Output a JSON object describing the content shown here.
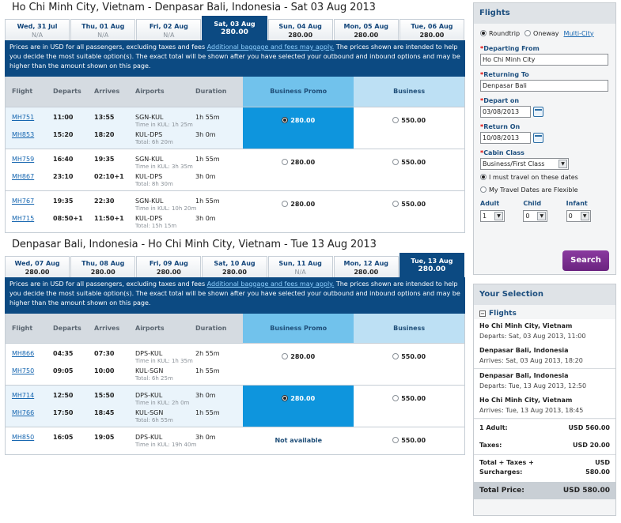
{
  "outbound": {
    "title": "Ho Chi Minh City, Vietnam - Denpasar Bali, Indonesia - Sat 03 Aug 2013",
    "dates": [
      {
        "label": "Wed, 31 Jul",
        "price": "N/A",
        "available": false,
        "selected": false
      },
      {
        "label": "Thu, 01 Aug",
        "price": "N/A",
        "available": false,
        "selected": false
      },
      {
        "label": "Fri, 02 Aug",
        "price": "N/A",
        "available": false,
        "selected": false
      },
      {
        "label": "Sat, 03 Aug",
        "price": "280.00",
        "available": true,
        "selected": true
      },
      {
        "label": "Sun, 04 Aug",
        "price": "280.00",
        "available": true,
        "selected": false
      },
      {
        "label": "Mon, 05 Aug",
        "price": "280.00",
        "available": true,
        "selected": false
      },
      {
        "label": "Tue, 06 Aug",
        "price": "280.00",
        "available": true,
        "selected": false
      }
    ],
    "options": [
      {
        "legs": [
          {
            "flight": "MH751",
            "departs": "11:00",
            "arrives": "13:55",
            "airports": "SGN-KUL",
            "duration": "1h 55m",
            "note": "Time in KUL: 1h 25m"
          },
          {
            "flight": "MH853",
            "departs": "15:20",
            "arrives": "18:20",
            "airports": "KUL-DPS",
            "duration": "3h 0m",
            "note": "Total: 6h 20m"
          }
        ],
        "business_promo": "280.00",
        "business": "550.00",
        "selected": "promo"
      },
      {
        "legs": [
          {
            "flight": "MH759",
            "departs": "16:40",
            "arrives": "19:35",
            "airports": "SGN-KUL",
            "duration": "1h 55m",
            "note": "Time in KUL: 3h 35m"
          },
          {
            "flight": "MH867",
            "departs": "23:10",
            "arrives": "02:10+1",
            "airports": "KUL-DPS",
            "duration": "3h 0m",
            "note": "Total: 8h 30m"
          }
        ],
        "business_promo": "280.00",
        "business": "550.00",
        "selected": ""
      },
      {
        "legs": [
          {
            "flight": "MH767",
            "departs": "19:35",
            "arrives": "22:30",
            "airports": "SGN-KUL",
            "duration": "1h 55m",
            "note": "Time in KUL: 10h 20m"
          },
          {
            "flight": "MH715",
            "departs": "08:50+1",
            "arrives": "11:50+1",
            "airports": "KUL-DPS",
            "duration": "3h 0m",
            "note": "Total: 15h 15m"
          }
        ],
        "business_promo": "280.00",
        "business": "550.00",
        "selected": ""
      }
    ]
  },
  "inbound": {
    "title": "Denpasar Bali, Indonesia - Ho Chi Minh City, Vietnam - Tue 13 Aug 2013",
    "dates": [
      {
        "label": "Wed, 07 Aug",
        "price": "280.00",
        "available": true,
        "selected": false
      },
      {
        "label": "Thu, 08 Aug",
        "price": "280.00",
        "available": true,
        "selected": false
      },
      {
        "label": "Fri, 09 Aug",
        "price": "280.00",
        "available": true,
        "selected": false
      },
      {
        "label": "Sat, 10 Aug",
        "price": "280.00",
        "available": true,
        "selected": false
      },
      {
        "label": "Sun, 11 Aug",
        "price": "N/A",
        "available": false,
        "selected": false
      },
      {
        "label": "Mon, 12 Aug",
        "price": "280.00",
        "available": true,
        "selected": false
      },
      {
        "label": "Tue, 13 Aug",
        "price": "280.00",
        "available": true,
        "selected": true
      }
    ],
    "options": [
      {
        "legs": [
          {
            "flight": "MH866",
            "departs": "04:35",
            "arrives": "07:30",
            "airports": "DPS-KUL",
            "duration": "2h 55m",
            "note": "Time in KUL: 1h 35m"
          },
          {
            "flight": "MH750",
            "departs": "09:05",
            "arrives": "10:00",
            "airports": "KUL-SGN",
            "duration": "1h 55m",
            "note": "Total: 6h 25m"
          }
        ],
        "business_promo": "280.00",
        "business": "550.00",
        "selected": ""
      },
      {
        "legs": [
          {
            "flight": "MH714",
            "departs": "12:50",
            "arrives": "15:50",
            "airports": "DPS-KUL",
            "duration": "3h 0m",
            "note": "Time in KUL: 2h 0m"
          },
          {
            "flight": "MH766",
            "departs": "17:50",
            "arrives": "18:45",
            "airports": "KUL-SGN",
            "duration": "1h 55m",
            "note": "Total: 6h 55m"
          }
        ],
        "business_promo": "280.00",
        "business": "550.00",
        "selected": "promo"
      },
      {
        "legs": [
          {
            "flight": "MH850",
            "departs": "16:05",
            "arrives": "19:05",
            "airports": "DPS-KUL",
            "duration": "3h 0m",
            "note": "Time in KUL: 19h 40m"
          }
        ],
        "business_promo": "Not available",
        "business": "550.00",
        "selected": ""
      }
    ]
  },
  "notice": {
    "text_before": "Prices are in USD for all passengers, excluding taxes and fees ",
    "link": "Additional baggage and fees may apply.",
    "text_after": " The prices shown are intended to help you decide the most suitable option(s). The exact total will be shown after you have selected your outbound and inbound options and may be higher than the amount shown on this page."
  },
  "columns": {
    "flight": "Flight",
    "departs": "Departs",
    "arrives": "Arrives",
    "airports": "Airports",
    "duration": "Duration",
    "business_promo": "Business Promo",
    "business": "Business"
  },
  "search": {
    "title": "Flights",
    "roundtrip": "Roundtrip",
    "oneway": "Oneway",
    "multicity": "Multi-City",
    "departing_label": "Departing From",
    "departing_value": "Ho Chi Minh City",
    "returning_label": "Returning To",
    "returning_value": "Denpasar Bali",
    "depart_on_label": "Depart on",
    "depart_on_value": "03/08/2013",
    "return_on_label": "Return On",
    "return_on_value": "10/08/2013",
    "cabin_label": "Cabin Class",
    "cabin_value": "Business/First Class",
    "must_travel": "I must travel on these dates",
    "flexible": "My Travel Dates are Flexible",
    "adult_label": "Adult",
    "adult_value": "1",
    "child_label": "Child",
    "child_value": "0",
    "infant_label": "Infant",
    "infant_value": "0",
    "button": "Search"
  },
  "selection": {
    "title": "Your Selection",
    "flights_label": "Flights",
    "legs": [
      {
        "city": "Ho Chi Minh City, Vietnam",
        "when": "Departs: Sat, 03 Aug 2013, 11:00"
      },
      {
        "city": "Denpasar Bali, Indonesia",
        "when": "Arrives: Sat, 03 Aug 2013, 18:20"
      },
      {
        "city": "Denpasar Bali, Indonesia",
        "when": "Departs: Tue, 13 Aug 2013, 12:50"
      },
      {
        "city": "Ho Chi Minh City, Vietnam",
        "when": "Arrives: Tue, 13 Aug 2013, 18:45"
      }
    ],
    "adult_label": "1 Adult:",
    "adult_value": "USD 560.00",
    "taxes_label": "Taxes:",
    "taxes_value": "USD 20.00",
    "fare_label_1": "Total + Taxes +",
    "fare_label_2": "Surcharges:",
    "fare_value_1": "USD",
    "fare_value_2": "580.00",
    "total_label": "Total Price:",
    "total_value": "USD 580.00"
  }
}
